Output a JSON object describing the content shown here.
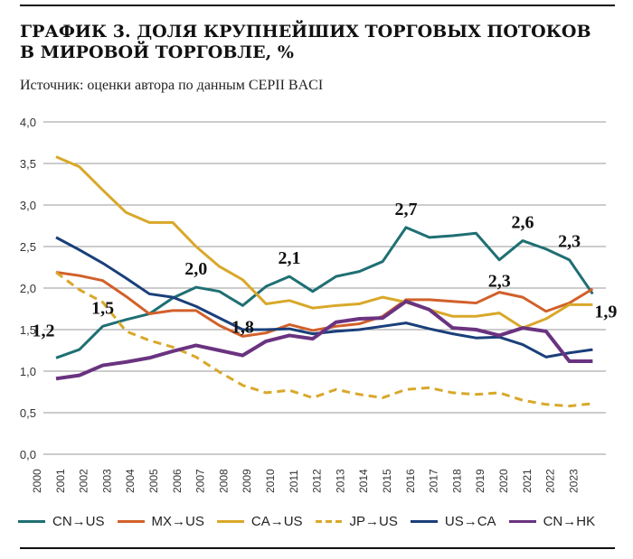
{
  "title_line1": "ГРАФИК 3. ДОЛЯ КРУПНЕЙШИХ ТОРГОВЫХ ПОТОКОВ",
  "title_line2": "В МИРОВОЙ ТОРГОВЛЕ, %",
  "subtitle": "Источник: оценки автора по данным CEPII BACI",
  "chart_data": {
    "type": "line",
    "ylim": [
      0,
      4
    ],
    "yticks": [
      "0,0",
      "0,5",
      "1,0",
      "1,5",
      "2,0",
      "2,5",
      "3,0",
      "3,5",
      "4,0"
    ],
    "grid": true,
    "legend": "bottom",
    "x": [
      "2000",
      "2001",
      "2002",
      "2003",
      "2004",
      "2005",
      "2006",
      "2007",
      "2008",
      "2009",
      "2010",
      "2011",
      "2012",
      "2013",
      "2014",
      "2015",
      "2016",
      "2017",
      "2018",
      "2019",
      "2020",
      "2021",
      "2022",
      "2023"
    ],
    "series": [
      {
        "name": "CN→US",
        "color": "#1f6f73",
        "dash": false,
        "values": [
          1.16,
          1.26,
          1.54,
          1.62,
          1.69,
          1.88,
          2.01,
          1.96,
          1.79,
          2.02,
          2.14,
          1.96,
          2.14,
          2.2,
          2.32,
          2.73,
          2.61,
          2.63,
          2.66,
          2.34,
          2.57,
          2.47,
          2.34,
          1.93
        ]
      },
      {
        "name": "MX→US",
        "color": "#d2602a",
        "dash": false,
        "values": [
          2.19,
          2.15,
          2.09,
          1.9,
          1.69,
          1.73,
          1.73,
          1.55,
          1.42,
          1.46,
          1.56,
          1.49,
          1.54,
          1.57,
          1.66,
          1.86,
          1.86,
          1.84,
          1.82,
          1.95,
          1.89,
          1.72,
          1.82,
          1.99
        ]
      },
      {
        "name": "CA→US",
        "color": "#d9a82a",
        "dash": false,
        "values": [
          3.58,
          3.46,
          3.18,
          2.91,
          2.79,
          2.79,
          2.5,
          2.26,
          2.1,
          1.81,
          1.85,
          1.76,
          1.79,
          1.81,
          1.89,
          1.83,
          1.74,
          1.66,
          1.66,
          1.7,
          1.52,
          1.63,
          1.8,
          1.8
        ]
      },
      {
        "name": "JP→US",
        "color": "#d9a82a",
        "dash": true,
        "values": [
          2.19,
          1.98,
          1.83,
          1.48,
          1.37,
          1.29,
          1.17,
          0.99,
          0.83,
          0.74,
          0.77,
          0.68,
          0.78,
          0.72,
          0.68,
          0.78,
          0.8,
          0.74,
          0.72,
          0.74,
          0.65,
          0.6,
          0.58,
          0.61
        ]
      },
      {
        "name": "US→CA",
        "color": "#1a3f7a",
        "dash": false,
        "values": [
          2.61,
          2.46,
          2.3,
          2.12,
          1.93,
          1.89,
          1.78,
          1.64,
          1.5,
          1.5,
          1.51,
          1.45,
          1.48,
          1.5,
          1.54,
          1.58,
          1.51,
          1.45,
          1.4,
          1.41,
          1.32,
          1.17,
          1.22,
          1.26
        ]
      },
      {
        "name": "CN→HK",
        "color": "#6a3380",
        "dash": false,
        "values": [
          0.91,
          0.95,
          1.07,
          1.11,
          1.16,
          1.24,
          1.31,
          1.25,
          1.19,
          1.36,
          1.43,
          1.39,
          1.59,
          1.63,
          1.64,
          1.84,
          1.74,
          1.52,
          1.5,
          1.43,
          1.52,
          1.48,
          1.12,
          1.12
        ]
      }
    ],
    "annotations": [
      {
        "text": "1,2",
        "index": 0,
        "pos": "above-left"
      },
      {
        "text": "1,5",
        "index": 2,
        "pos": "above"
      },
      {
        "text": "2,0",
        "index": 6,
        "pos": "above"
      },
      {
        "text": "1,8",
        "index": 8,
        "pos": "below"
      },
      {
        "text": "2,1",
        "index": 10,
        "pos": "above"
      },
      {
        "text": "2,7",
        "index": 15,
        "pos": "above"
      },
      {
        "text": "2,3",
        "index": 19,
        "pos": "below"
      },
      {
        "text": "2,6",
        "index": 20,
        "pos": "above"
      },
      {
        "text": "2,3",
        "index": 22,
        "pos": "above"
      },
      {
        "text": "1,9",
        "index": 23,
        "pos": "right"
      }
    ]
  }
}
